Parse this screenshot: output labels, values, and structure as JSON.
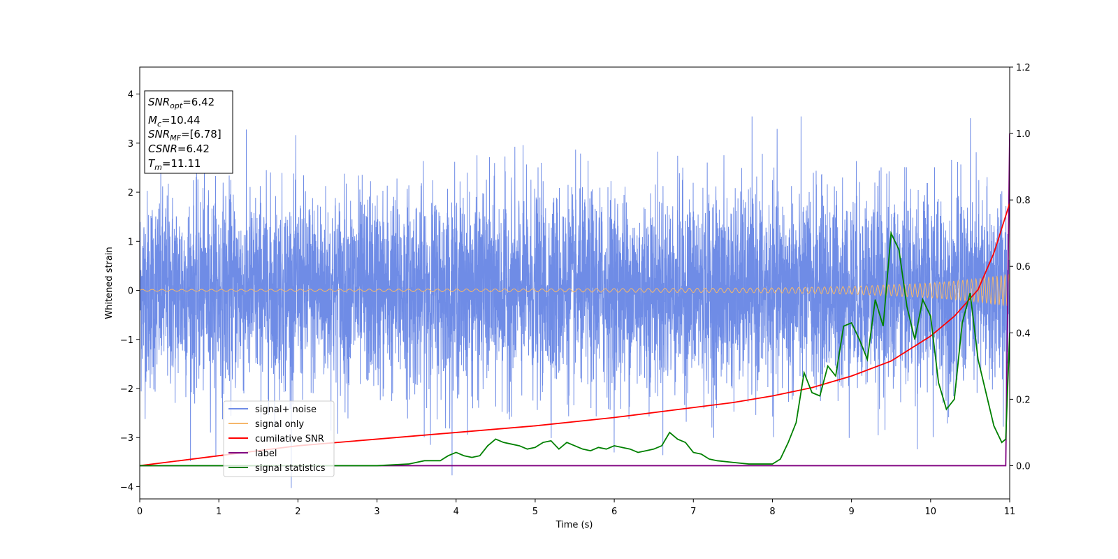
{
  "chart_data": {
    "type": "line",
    "title": "",
    "xlabel": "Time (s)",
    "ylabel": "Whitened strain",
    "xlim": [
      0,
      11
    ],
    "ylim": [
      -4.25,
      4.55
    ],
    "y2lim": [
      -0.1,
      1.2
    ],
    "x_ticks": [
      0,
      1,
      2,
      3,
      4,
      5,
      6,
      7,
      8,
      9,
      10,
      11
    ],
    "y_ticks": [
      -4,
      -3,
      -2,
      -1,
      0,
      1,
      2,
      3,
      4
    ],
    "y2_ticks": [
      0.0,
      0.2,
      0.4,
      0.6,
      0.8,
      1.0,
      1.2
    ],
    "grid": false,
    "legend_position": "lower-left",
    "info_box": {
      "position": "top-left",
      "lines": [
        {
          "sym": "SNR",
          "sub": "opt",
          "val": "=6.42"
        },
        {
          "sym": "M",
          "sub": "c",
          "val": "=10.44"
        },
        {
          "sym": "SNR",
          "sub": "MF",
          "val": "=[6.78]"
        },
        {
          "sym": "CSNR",
          "sub": "",
          "val": "=6.42"
        },
        {
          "sym": "T",
          "sub": "m",
          "val": "=11.11"
        }
      ]
    },
    "series": [
      {
        "name": "signal+ noise",
        "color": "#6f8ce6",
        "axis": "left",
        "kind": "noise",
        "sigma": 1.0,
        "amplitude_range": [
          -4.2,
          4.2
        ],
        "envelope": {
          "x": [
            0,
            8,
            9,
            10,
            10.5,
            11
          ],
          "y": [
            0.0,
            0.03,
            0.07,
            0.15,
            0.22,
            0.33
          ]
        }
      },
      {
        "name": "signal only",
        "color": "#f5b76b",
        "axis": "left",
        "kind": "chirp",
        "envelope": {
          "x": [
            0,
            5,
            8,
            9,
            10,
            10.5,
            11
          ],
          "y": [
            0.02,
            0.03,
            0.05,
            0.08,
            0.15,
            0.22,
            0.33
          ]
        }
      },
      {
        "name": "cumilative SNR",
        "color": "#ff0000",
        "axis": "right",
        "x": [
          0,
          1,
          2,
          3,
          4,
          5,
          6,
          7,
          7.5,
          8,
          8.5,
          9,
          9.5,
          10,
          10.3,
          10.6,
          10.8,
          11
        ],
        "y": [
          0.0,
          0.03,
          0.06,
          0.08,
          0.1,
          0.12,
          0.145,
          0.175,
          0.19,
          0.21,
          0.235,
          0.27,
          0.315,
          0.39,
          0.45,
          0.53,
          0.64,
          0.79
        ]
      },
      {
        "name": "label",
        "color": "#800080",
        "axis": "right",
        "x": [
          0,
          10.95,
          11.0
        ],
        "y": [
          0.0,
          0.0,
          1.0
        ]
      },
      {
        "name": "signal statistics",
        "color": "#008000",
        "axis": "right",
        "x": [
          0,
          1,
          2,
          3,
          3.4,
          3.6,
          3.8,
          3.9,
          4.0,
          4.1,
          4.2,
          4.3,
          4.4,
          4.5,
          4.6,
          4.7,
          4.8,
          4.9,
          5.0,
          5.1,
          5.2,
          5.3,
          5.4,
          5.5,
          5.6,
          5.7,
          5.8,
          5.9,
          6.0,
          6.1,
          6.2,
          6.3,
          6.4,
          6.5,
          6.6,
          6.7,
          6.8,
          6.9,
          7.0,
          7.1,
          7.2,
          7.3,
          7.5,
          7.7,
          8.0,
          8.1,
          8.2,
          8.3,
          8.4,
          8.5,
          8.6,
          8.7,
          8.8,
          8.9,
          9.0,
          9.1,
          9.2,
          9.3,
          9.4,
          9.5,
          9.6,
          9.7,
          9.8,
          9.9,
          10.0,
          10.1,
          10.2,
          10.3,
          10.4,
          10.5,
          10.6,
          10.7,
          10.8,
          10.9,
          10.95,
          11.0
        ],
        "y": [
          0.0,
          0.0,
          0.0,
          0.0,
          0.005,
          0.015,
          0.015,
          0.03,
          0.04,
          0.03,
          0.025,
          0.03,
          0.06,
          0.08,
          0.07,
          0.065,
          0.06,
          0.05,
          0.055,
          0.07,
          0.075,
          0.05,
          0.07,
          0.06,
          0.05,
          0.045,
          0.055,
          0.05,
          0.06,
          0.055,
          0.05,
          0.04,
          0.045,
          0.05,
          0.06,
          0.1,
          0.08,
          0.07,
          0.04,
          0.035,
          0.02,
          0.015,
          0.01,
          0.005,
          0.005,
          0.02,
          0.07,
          0.13,
          0.28,
          0.22,
          0.21,
          0.3,
          0.27,
          0.42,
          0.43,
          0.38,
          0.32,
          0.5,
          0.42,
          0.7,
          0.65,
          0.48,
          0.38,
          0.5,
          0.45,
          0.25,
          0.17,
          0.2,
          0.43,
          0.52,
          0.32,
          0.22,
          0.12,
          0.07,
          0.08,
          0.4
        ]
      }
    ]
  }
}
